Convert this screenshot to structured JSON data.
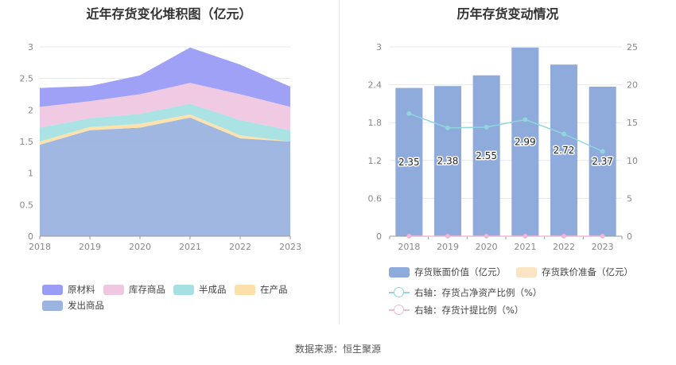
{
  "source": "数据来源：恒生聚源",
  "chart_data": [
    {
      "type": "area",
      "stacked": true,
      "title": "近年存货变化堆积图（亿元）",
      "x": [
        "2018",
        "2019",
        "2020",
        "2021",
        "2022",
        "2023"
      ],
      "ylim": [
        0,
        3
      ],
      "yticks": [
        "0",
        "0.5",
        "1",
        "1.5",
        "2",
        "2.5",
        "3"
      ],
      "grid": true,
      "legend_position": "bottom",
      "series": [
        {
          "name": "发出商品",
          "color": "#9bb3df",
          "values": [
            1.45,
            1.68,
            1.72,
            1.88,
            1.55,
            1.5
          ]
        },
        {
          "name": "在产品",
          "color": "#fde0a8",
          "values": [
            0.05,
            0.05,
            0.06,
            0.05,
            0.05,
            0.0
          ]
        },
        {
          "name": "半成品",
          "color": "#a7e0e3",
          "values": [
            0.22,
            0.14,
            0.16,
            0.17,
            0.24,
            0.18
          ]
        },
        {
          "name": "库存商品",
          "color": "#efc7e0",
          "values": [
            0.33,
            0.27,
            0.31,
            0.33,
            0.41,
            0.37
          ]
        },
        {
          "name": "原材料",
          "color": "#9a9cf6",
          "values": [
            0.3,
            0.24,
            0.3,
            0.56,
            0.47,
            0.32
          ]
        }
      ],
      "legend_order": [
        "原材料",
        "库存商品",
        "半成品",
        "在产品",
        "发出商品"
      ]
    },
    {
      "type": "bar",
      "title": "历年存货变动情况",
      "categories": [
        "2018",
        "2019",
        "2020",
        "2021",
        "2022",
        "2023"
      ],
      "grid": true,
      "legend_position": "bottom",
      "left_axis": {
        "ylim": [
          0,
          3
        ],
        "yticks": [
          "0",
          "0.6",
          "1.2",
          "1.8",
          "2.4",
          "3"
        ]
      },
      "right_axis": {
        "ylim": [
          0,
          25
        ],
        "yticks": [
          "0",
          "5",
          "10",
          "15",
          "20",
          "25"
        ]
      },
      "series": [
        {
          "name": "存货账面价值（亿元）",
          "type": "bar",
          "axis": "left",
          "color": "#8eabdb",
          "values": [
            2.35,
            2.38,
            2.55,
            2.99,
            2.72,
            2.37
          ],
          "labels": [
            "2.35",
            "2.38",
            "2.55",
            "2.99",
            "2.72",
            "2.37"
          ]
        },
        {
          "name": "存货跌价准备（亿元）",
          "type": "bar",
          "axis": "left",
          "color": "#fbe4c4",
          "values": [
            0,
            0,
            0,
            0,
            0,
            0
          ]
        },
        {
          "name": "右轴：存货占净资产比例（%）",
          "type": "line",
          "axis": "right",
          "color": "#8fd6dd",
          "values": [
            16.2,
            14.3,
            14.4,
            15.4,
            13.5,
            11.2
          ]
        },
        {
          "name": "右轴：存货计提比例（%）",
          "type": "line",
          "axis": "right",
          "color": "#f0b7d8",
          "values": [
            0,
            0,
            0,
            0,
            0,
            0
          ]
        }
      ]
    }
  ]
}
